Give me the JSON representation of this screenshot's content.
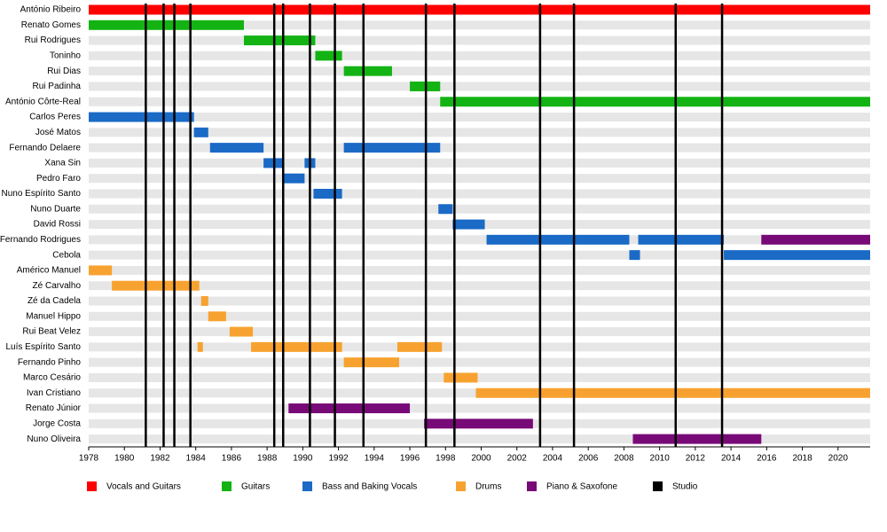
{
  "chart_data": {
    "type": "timeline",
    "categories": [
      "António Ribeiro",
      "Renato Gomes",
      "Rui Rodrigues",
      "Toninho",
      "Rui Dias",
      "Rui Padinha",
      "António Côrte-Real",
      "Carlos Peres",
      "José Matos",
      "Fernando Delaere",
      "Xana Sin",
      "Pedro Faro",
      "Nuno Espírito Santo",
      "Nuno Duarte",
      "David Rossi",
      "Fernando Rodrigues",
      "Cebola",
      "Américo Manuel",
      "Zé Carvalho",
      "Zé da Cadela",
      "Manuel Hippo",
      "Rui Beat Velez",
      "Luís Espírito Santo",
      "Fernando Pinho",
      "Marco Cesário",
      "Ivan Cristiano",
      "Renato Júnior",
      "Jorge Costa",
      "Nuno Oliveira"
    ],
    "xlim": [
      1978,
      2021.8
    ],
    "xticks": [
      1978,
      1980,
      1982,
      1984,
      1986,
      1988,
      1990,
      1992,
      1994,
      1996,
      1998,
      2000,
      2002,
      2004,
      2006,
      2008,
      2010,
      2012,
      2014,
      2016,
      2018,
      2020
    ],
    "series": [
      {
        "name": "Vocals and Guitars",
        "color": "#ff0000",
        "values": [
          {
            "member": "António Ribeiro",
            "start": 1978,
            "end": 2021.8
          }
        ]
      },
      {
        "name": "Guitars",
        "color": "#13b313",
        "values": [
          {
            "member": "Renato Gomes",
            "start": 1978,
            "end": 1986.7
          },
          {
            "member": "Rui Rodrigues",
            "start": 1986.7,
            "end": 1990.7
          },
          {
            "member": "Toninho",
            "start": 1990.7,
            "end": 1992.2
          },
          {
            "member": "Rui Dias",
            "start": 1992.3,
            "end": 1995
          },
          {
            "member": "Rui Padinha",
            "start": 1996,
            "end": 1997.7
          },
          {
            "member": "António Côrte-Real",
            "start": 1997.7,
            "end": 2021.8
          }
        ]
      },
      {
        "name": "Bass and Baking Vocals",
        "color": "#1a6ac6",
        "values": [
          {
            "member": "Carlos Peres",
            "start": 1978,
            "end": 1983.9
          },
          {
            "member": "José Matos",
            "start": 1983.9,
            "end": 1984.7
          },
          {
            "member": "Fernando Delaere",
            "start": 1984.8,
            "end": 1987.8
          },
          {
            "member": "Fernando Delaere",
            "start": 1992.3,
            "end": 1997.7
          },
          {
            "member": "Xana Sin",
            "start": 1987.8,
            "end": 1988.9
          },
          {
            "member": "Xana Sin",
            "start": 1990.1,
            "end": 1990.7
          },
          {
            "member": "Pedro Faro",
            "start": 1988.9,
            "end": 1990.1
          },
          {
            "member": "Nuno Espírito Santo",
            "start": 1990.6,
            "end": 1992.2
          },
          {
            "member": "Nuno Duarte",
            "start": 1997.6,
            "end": 1998.4
          },
          {
            "member": "David Rossi",
            "start": 1998.4,
            "end": 2000.2
          },
          {
            "member": "Fernando Rodrigues",
            "start": 2000.3,
            "end": 2008.3
          },
          {
            "member": "Fernando Rodrigues",
            "start": 2008.8,
            "end": 2013.6
          },
          {
            "member": "Cebola",
            "start": 2008.3,
            "end": 2008.9
          },
          {
            "member": "Cebola",
            "start": 2013.6,
            "end": 2021.8
          }
        ]
      },
      {
        "name": "Drums",
        "color": "#f7a230",
        "values": [
          {
            "member": "Américo Manuel",
            "start": 1978,
            "end": 1979.3
          },
          {
            "member": "Zé Carvalho",
            "start": 1979.3,
            "end": 1984.2
          },
          {
            "member": "Zé da Cadela",
            "start": 1984.3,
            "end": 1984.7
          },
          {
            "member": "Manuel Hippo",
            "start": 1984.7,
            "end": 1985.7
          },
          {
            "member": "Rui Beat Velez",
            "start": 1985.9,
            "end": 1987.2
          },
          {
            "member": "Luís Espírito Santo",
            "start": 1984.1,
            "end": 1984.4
          },
          {
            "member": "Luís Espírito Santo",
            "start": 1987.1,
            "end": 1992.2
          },
          {
            "member": "Luís Espírito Santo",
            "start": 1995.3,
            "end": 1997.8
          },
          {
            "member": "Fernando Pinho",
            "start": 1992.3,
            "end": 1995.4
          },
          {
            "member": "Marco Cesário",
            "start": 1997.9,
            "end": 1999.8
          },
          {
            "member": "Ivan Cristiano",
            "start": 1999.7,
            "end": 2021.8
          }
        ]
      },
      {
        "name": "Piano & Saxofone",
        "color": "#780a78",
        "values": [
          {
            "member": "Fernando Rodrigues",
            "start": 2015.7,
            "end": 2021.8
          },
          {
            "member": "Renato Júnior",
            "start": 1989.2,
            "end": 1996
          },
          {
            "member": "Jorge Costa",
            "start": 1996.8,
            "end": 2002.9
          },
          {
            "member": "Nuno Oliveira",
            "start": 2008.5,
            "end": 2015.7
          }
        ]
      }
    ],
    "lines": {
      "name": "Studio",
      "color": "#000000",
      "values": [
        1981.2,
        1982.2,
        1982.8,
        1983.7,
        1988.4,
        1988.9,
        1990.4,
        1991.8,
        1993.4,
        1996.9,
        1998.5,
        2003.3,
        2005.2,
        2010.9,
        2013.5
      ]
    }
  }
}
